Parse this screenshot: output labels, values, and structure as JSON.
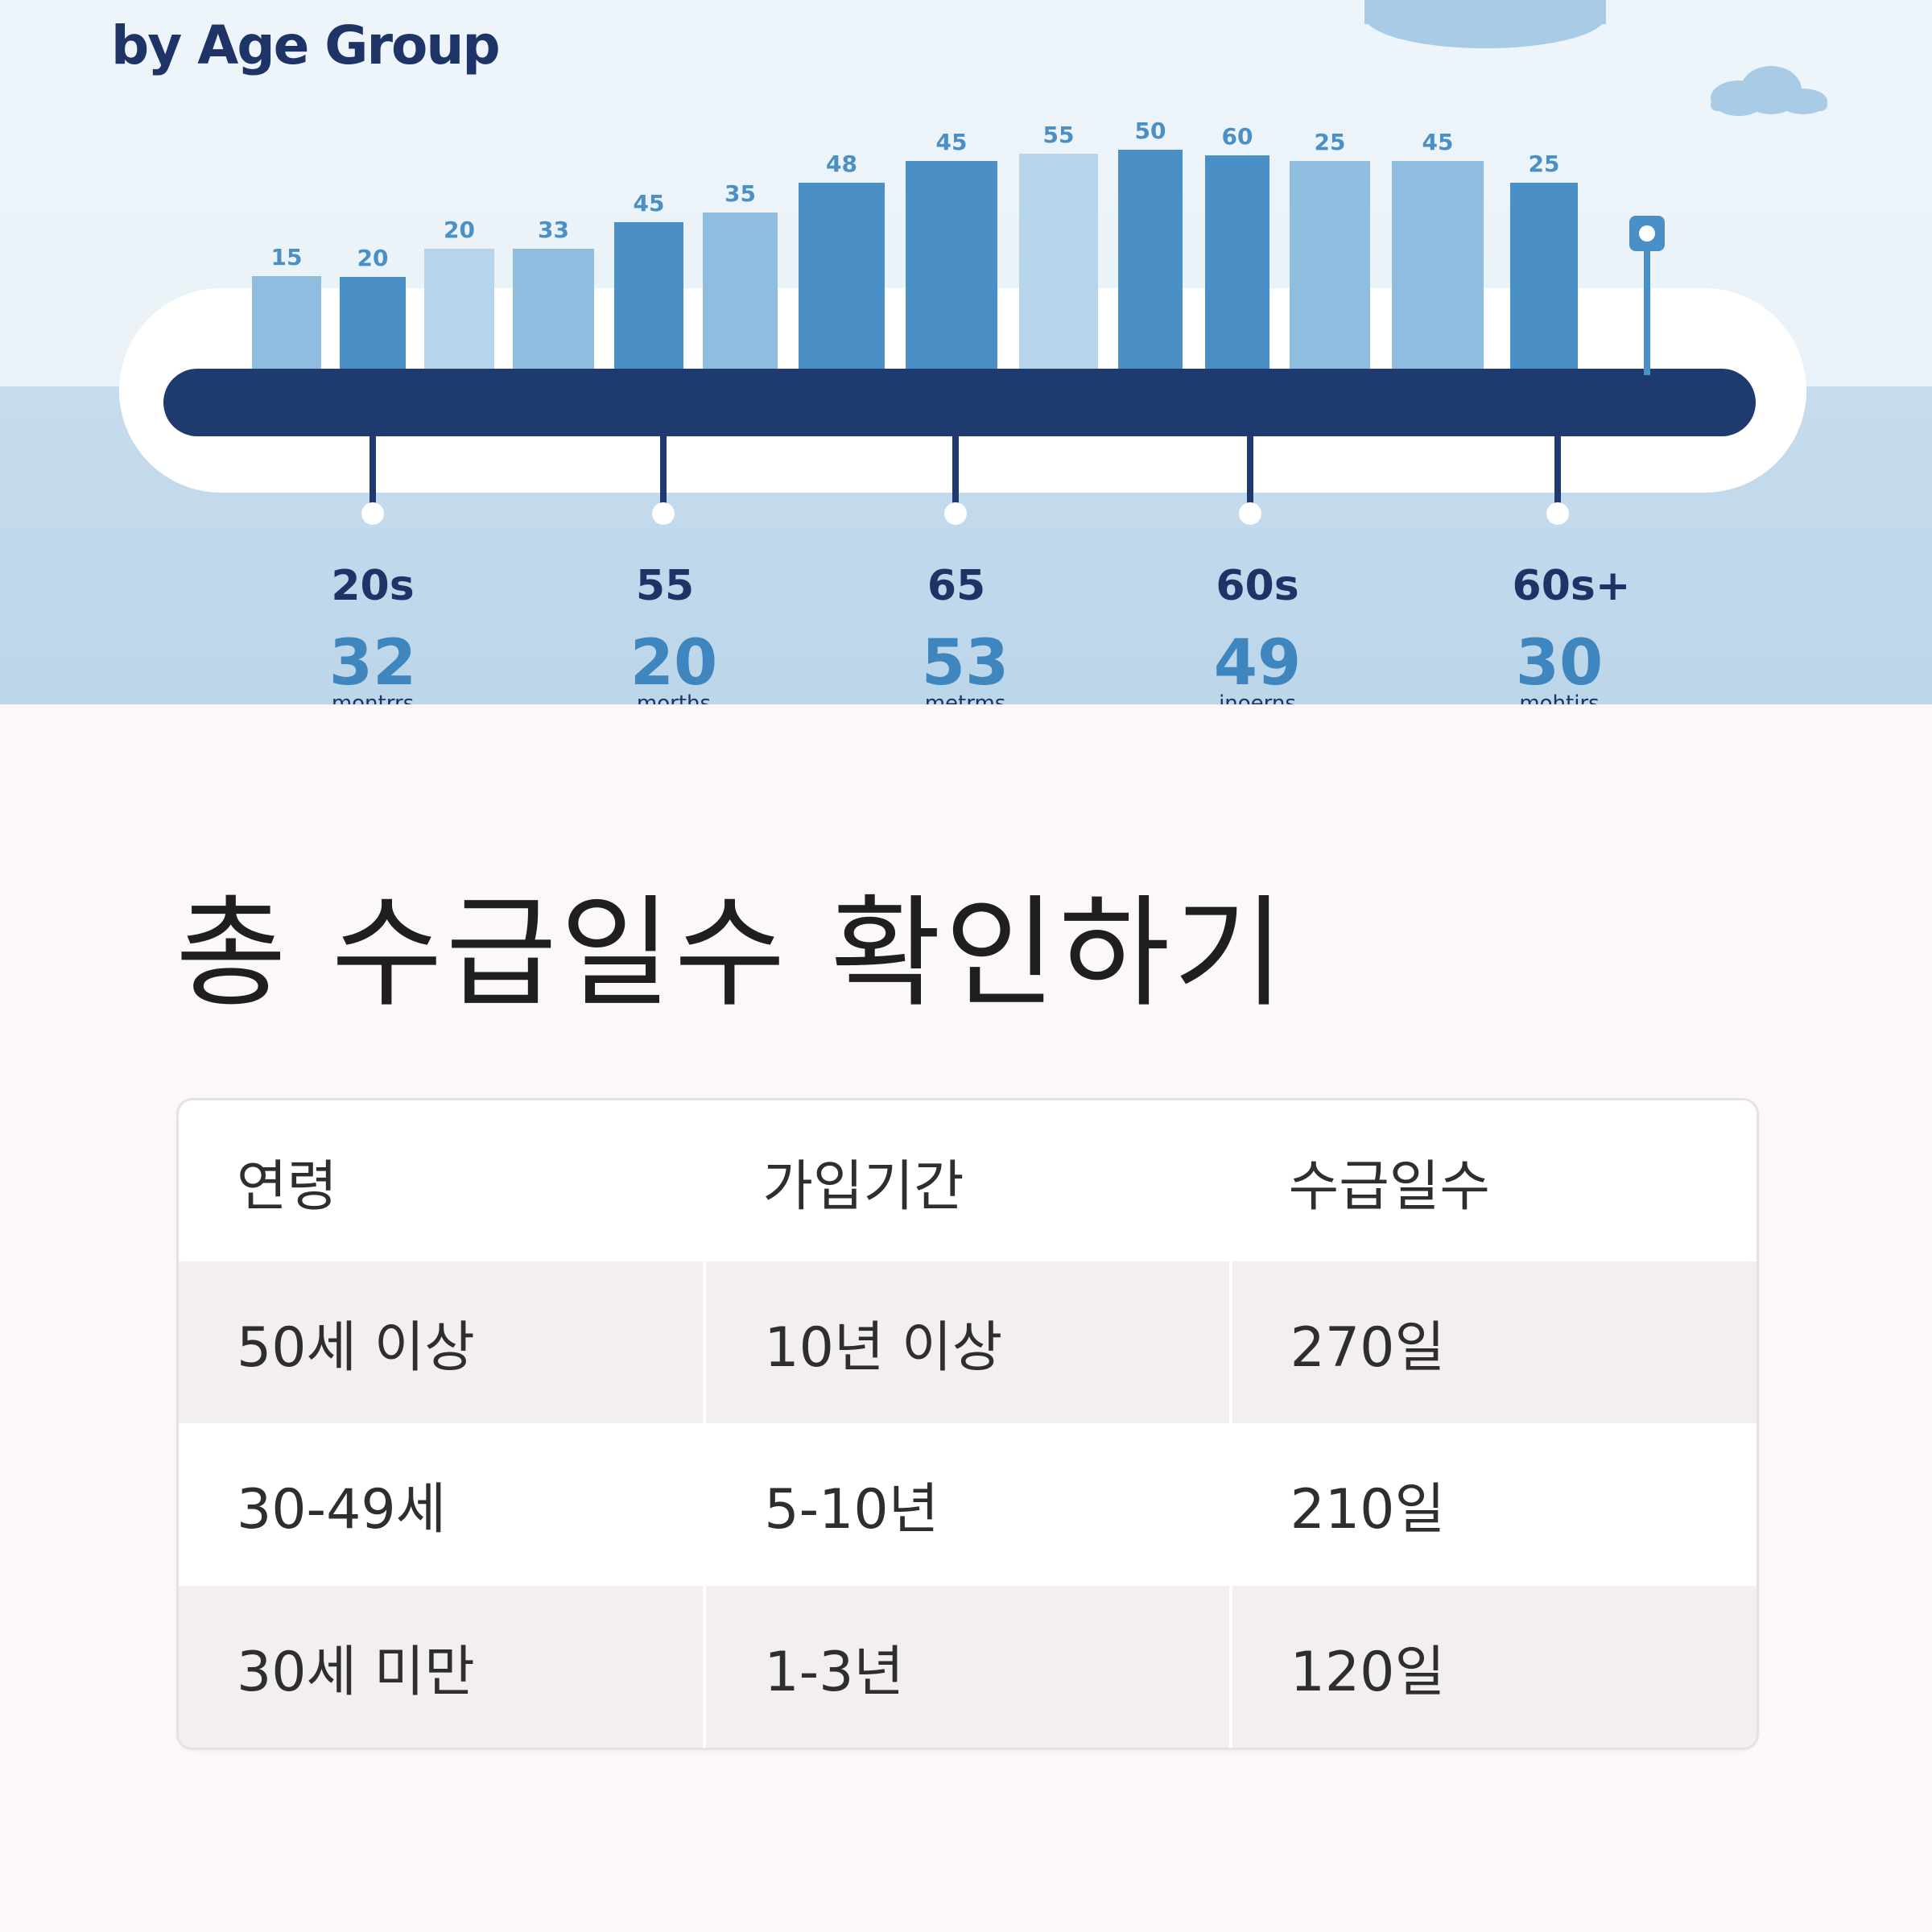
{
  "hero": {
    "title": "by Age Group",
    "bars": [
      {
        "label": "15",
        "value": 15,
        "color": "#8fbde0"
      },
      {
        "label": "20",
        "value": 20,
        "color": "#4a90c6"
      },
      {
        "label": "20",
        "value": 20,
        "color": "#b6d5ec"
      },
      {
        "label": "33",
        "value": 33,
        "color": "#8fbde0"
      },
      {
        "label": "45",
        "value": 45,
        "color": "#4a90c6"
      },
      {
        "label": "35",
        "value": 35,
        "color": "#8fbde0"
      },
      {
        "label": "48",
        "value": 48,
        "color": "#4a90c6"
      },
      {
        "label": "45",
        "value": 45,
        "color": "#4a90c6"
      },
      {
        "label": "55",
        "value": 55,
        "color": "#b6d5ec"
      },
      {
        "label": "50",
        "value": 50,
        "color": "#4a90c6"
      },
      {
        "label": "60",
        "value": 60,
        "color": "#4a90c6"
      },
      {
        "label": "25",
        "value": 25,
        "color": "#8fbde0"
      },
      {
        "label": "45",
        "value": 45,
        "color": "#8fbde0"
      },
      {
        "label": "25",
        "value": 25,
        "color": "#4a90c6"
      }
    ],
    "groups": [
      {
        "label": "20s",
        "value": "32",
        "unit": "montrrs"
      },
      {
        "label": "55",
        "value": "20",
        "unit": "morths"
      },
      {
        "label": "65",
        "value": "53",
        "unit": "metrms"
      },
      {
        "label": "60s",
        "value": "49",
        "unit": "inoerns"
      },
      {
        "label": "60s+",
        "value": "30",
        "unit": "mohtirs"
      }
    ],
    "colors": {
      "navy": "#1e3a6e",
      "label_blue": "#4a90c6",
      "group_text": "#1e3366",
      "group_value": "#3f86bf"
    }
  },
  "section": {
    "title": "총 수급일수 확인하기"
  },
  "table": {
    "headers": [
      "연령",
      "가입기간",
      "수급일수"
    ],
    "rows": [
      [
        "50세 이상",
        "10년 이상",
        "270일"
      ],
      [
        "30-49세",
        "5-10년",
        "210일"
      ],
      [
        "30세 미만",
        "1-3년",
        "120일"
      ]
    ]
  }
}
